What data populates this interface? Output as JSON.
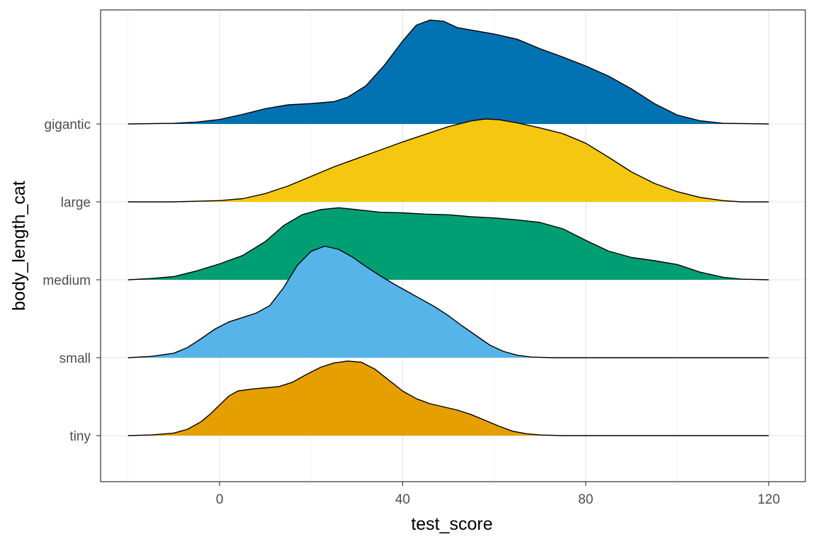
{
  "chart_data": {
    "type": "ridgeline",
    "xlabel": "test_score",
    "ylabel": "body_length_cat",
    "xlim": [
      -26,
      128
    ],
    "x_ticks": [
      0,
      40,
      80,
      120
    ],
    "x_minor_ticks": [
      -20,
      20,
      60,
      100
    ],
    "grid": true,
    "legend": "none",
    "categories": [
      "tiny",
      "small",
      "medium",
      "large",
      "gigantic"
    ],
    "series": [
      {
        "name": "tiny",
        "color": "#E69F00",
        "points": [
          [
            -20,
            0.0
          ],
          [
            -15,
            0.01
          ],
          [
            -10,
            0.04
          ],
          [
            -7,
            0.1
          ],
          [
            -4,
            0.22
          ],
          [
            -2,
            0.34
          ],
          [
            0,
            0.48
          ],
          [
            2,
            0.62
          ],
          [
            4,
            0.7
          ],
          [
            7,
            0.73
          ],
          [
            10,
            0.75
          ],
          [
            13,
            0.77
          ],
          [
            16,
            0.84
          ],
          [
            19,
            0.96
          ],
          [
            22,
            1.07
          ],
          [
            25,
            1.14
          ],
          [
            28,
            1.17
          ],
          [
            31,
            1.15
          ],
          [
            34,
            1.04
          ],
          [
            37,
            0.87
          ],
          [
            40,
            0.7
          ],
          [
            43,
            0.58
          ],
          [
            46,
            0.5
          ],
          [
            49,
            0.45
          ],
          [
            52,
            0.4
          ],
          [
            55,
            0.33
          ],
          [
            58,
            0.24
          ],
          [
            61,
            0.15
          ],
          [
            64,
            0.07
          ],
          [
            67,
            0.03
          ],
          [
            70,
            0.01
          ],
          [
            75,
            0.0
          ],
          [
            120,
            0.0
          ]
        ]
      },
      {
        "name": "small",
        "color": "#56B4E9",
        "points": [
          [
            -20,
            0.0
          ],
          [
            -15,
            0.02
          ],
          [
            -10,
            0.07
          ],
          [
            -7,
            0.16
          ],
          [
            -4,
            0.3
          ],
          [
            -1,
            0.45
          ],
          [
            2,
            0.56
          ],
          [
            5,
            0.63
          ],
          [
            8,
            0.7
          ],
          [
            11,
            0.82
          ],
          [
            14,
            1.1
          ],
          [
            17,
            1.45
          ],
          [
            20,
            1.67
          ],
          [
            23,
            1.75
          ],
          [
            26,
            1.7
          ],
          [
            29,
            1.58
          ],
          [
            32,
            1.43
          ],
          [
            35,
            1.29
          ],
          [
            38,
            1.16
          ],
          [
            41,
            1.04
          ],
          [
            44,
            0.92
          ],
          [
            47,
            0.8
          ],
          [
            50,
            0.66
          ],
          [
            53,
            0.5
          ],
          [
            56,
            0.35
          ],
          [
            59,
            0.2
          ],
          [
            62,
            0.1
          ],
          [
            65,
            0.04
          ],
          [
            68,
            0.01
          ],
          [
            73,
            0.0
          ],
          [
            120,
            0.0
          ]
        ]
      },
      {
        "name": "medium",
        "color": "#009E73",
        "points": [
          [
            -20,
            0.0
          ],
          [
            -15,
            0.02
          ],
          [
            -10,
            0.05
          ],
          [
            -5,
            0.14
          ],
          [
            0,
            0.25
          ],
          [
            5,
            0.38
          ],
          [
            10,
            0.6
          ],
          [
            14,
            0.85
          ],
          [
            18,
            1.02
          ],
          [
            22,
            1.1
          ],
          [
            26,
            1.13
          ],
          [
            30,
            1.1
          ],
          [
            35,
            1.06
          ],
          [
            40,
            1.05
          ],
          [
            45,
            1.03
          ],
          [
            50,
            1.02
          ],
          [
            55,
            0.99
          ],
          [
            60,
            0.97
          ],
          [
            65,
            0.94
          ],
          [
            70,
            0.9
          ],
          [
            75,
            0.8
          ],
          [
            80,
            0.62
          ],
          [
            85,
            0.45
          ],
          [
            90,
            0.35
          ],
          [
            95,
            0.3
          ],
          [
            100,
            0.24
          ],
          [
            105,
            0.12
          ],
          [
            110,
            0.04
          ],
          [
            114,
            0.01
          ],
          [
            120,
            0.0
          ]
        ]
      },
      {
        "name": "large",
        "color": "#F5C710",
        "points": [
          [
            -20,
            0.0
          ],
          [
            -10,
            0.0
          ],
          [
            -5,
            0.01
          ],
          [
            0,
            0.02
          ],
          [
            5,
            0.05
          ],
          [
            10,
            0.13
          ],
          [
            15,
            0.25
          ],
          [
            20,
            0.4
          ],
          [
            25,
            0.55
          ],
          [
            30,
            0.68
          ],
          [
            35,
            0.81
          ],
          [
            40,
            0.94
          ],
          [
            45,
            1.06
          ],
          [
            50,
            1.18
          ],
          [
            55,
            1.27
          ],
          [
            58,
            1.3
          ],
          [
            61,
            1.29
          ],
          [
            65,
            1.24
          ],
          [
            70,
            1.16
          ],
          [
            75,
            1.07
          ],
          [
            80,
            0.92
          ],
          [
            85,
            0.7
          ],
          [
            90,
            0.47
          ],
          [
            95,
            0.29
          ],
          [
            100,
            0.16
          ],
          [
            105,
            0.07
          ],
          [
            110,
            0.02
          ],
          [
            114,
            0.0
          ],
          [
            120,
            0.0
          ]
        ]
      },
      {
        "name": "gigantic",
        "color": "#0072B2",
        "points": [
          [
            -20,
            0.0
          ],
          [
            -10,
            0.01
          ],
          [
            -5,
            0.03
          ],
          [
            0,
            0.07
          ],
          [
            5,
            0.15
          ],
          [
            10,
            0.24
          ],
          [
            15,
            0.3
          ],
          [
            20,
            0.32
          ],
          [
            25,
            0.35
          ],
          [
            28,
            0.42
          ],
          [
            32,
            0.6
          ],
          [
            36,
            0.92
          ],
          [
            40,
            1.3
          ],
          [
            43,
            1.55
          ],
          [
            46,
            1.63
          ],
          [
            49,
            1.61
          ],
          [
            52,
            1.51
          ],
          [
            56,
            1.46
          ],
          [
            60,
            1.41
          ],
          [
            65,
            1.33
          ],
          [
            70,
            1.18
          ],
          [
            75,
            1.05
          ],
          [
            80,
            0.91
          ],
          [
            85,
            0.75
          ],
          [
            90,
            0.55
          ],
          [
            95,
            0.32
          ],
          [
            100,
            0.14
          ],
          [
            105,
            0.05
          ],
          [
            110,
            0.01
          ],
          [
            120,
            0.0
          ]
        ]
      }
    ]
  }
}
